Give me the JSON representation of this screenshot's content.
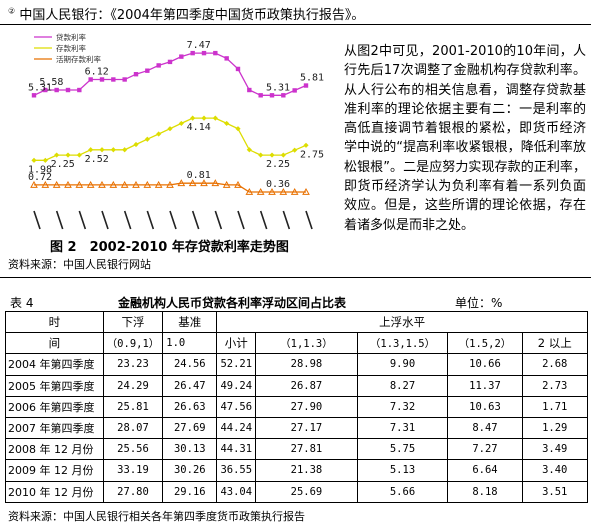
{
  "footnote": {
    "marker": "②",
    "text": "中国人民银行：《2004年第四季度中国货币政策执行报告》。"
  },
  "paragraph": "从图2中可见，2001-2010的10年间，人行先后17次调整了金融机构存贷款利率。从人行公布的相关信息看，调整存贷款基准利率的理论依据主要有二：一是利率的高低直接调节着银根的紧松，即货币经济学中说的“提高利率收紧银根，降低利率放松银根”。二是应努力实现存款的正利率，即货币经济学认为负利率有着一系列负面效应。但是，这些所谓的理论依据，存在着诸多似是而非之处。",
  "figure": {
    "caption": "图 2　2002-2010 年存贷款利率走势图",
    "source": "资料来源：中国人民银行网站"
  },
  "chart_data": {
    "type": "line",
    "legend": [
      "贷款利率",
      "存款利率",
      "活期存款利率"
    ],
    "series": [
      {
        "name": "贷款利率",
        "color": "#cc33cc",
        "marker": "square",
        "values": [
          5.31,
          5.58,
          5.58,
          5.58,
          5.58,
          6.12,
          6.12,
          6.12,
          6.12,
          6.39,
          6.57,
          6.84,
          7.02,
          7.29,
          7.47,
          7.47,
          7.47,
          7.2,
          6.66,
          5.58,
          5.31,
          5.31,
          5.31,
          5.56,
          5.81
        ]
      },
      {
        "name": "存款利率",
        "color": "#dddd00",
        "marker": "diamond",
        "values": [
          1.98,
          1.98,
          2.25,
          2.25,
          2.25,
          2.52,
          2.52,
          2.52,
          2.52,
          2.79,
          3.06,
          3.33,
          3.6,
          3.87,
          4.14,
          4.14,
          4.14,
          3.87,
          3.6,
          2.52,
          2.25,
          2.25,
          2.25,
          2.5,
          2.75
        ]
      },
      {
        "name": "活期存款利率",
        "color": "#e87000",
        "marker": "triangle",
        "values": [
          0.72,
          0.72,
          0.72,
          0.72,
          0.72,
          0.72,
          0.72,
          0.72,
          0.72,
          0.72,
          0.72,
          0.72,
          0.72,
          0.81,
          0.81,
          0.81,
          0.81,
          0.72,
          0.72,
          0.36,
          0.36,
          0.36,
          0.36,
          0.36,
          0.36
        ]
      }
    ],
    "annotations": [
      {
        "series": 0,
        "index": 0,
        "text": "5.31"
      },
      {
        "series": 0,
        "index": 1,
        "text": "5.58"
      },
      {
        "series": 0,
        "index": 5,
        "text": "6.12"
      },
      {
        "series": 0,
        "index": 14,
        "text": "7.47"
      },
      {
        "series": 0,
        "index": 21,
        "text": "5.31"
      },
      {
        "series": 0,
        "index": 24,
        "text": "5.81"
      },
      {
        "series": 1,
        "index": 0,
        "text": "1.98"
      },
      {
        "series": 1,
        "index": 2,
        "text": "2.25"
      },
      {
        "series": 1,
        "index": 5,
        "text": "2.52"
      },
      {
        "series": 1,
        "index": 14,
        "text": "4.14"
      },
      {
        "series": 1,
        "index": 21,
        "text": "2.25"
      },
      {
        "series": 1,
        "index": 24,
        "text": "2.75"
      },
      {
        "series": 2,
        "index": 0,
        "text": "0.72"
      },
      {
        "series": 2,
        "index": 14,
        "text": "0.81"
      },
      {
        "series": 2,
        "index": 21,
        "text": "0.36"
      }
    ],
    "ylim": [
      0,
      8.5
    ],
    "grid": false,
    "legend_placement": "top-left"
  },
  "table": {
    "label": "表 4",
    "title": "金融机构人民币贷款各利率浮动区间占比表",
    "unit": "单位：%",
    "header": {
      "time_top": "时",
      "time_bottom": "间",
      "down": "下浮",
      "base": "基准",
      "up": "上浮水平",
      "down_range": "（0.9,1）",
      "base_value": "1.0",
      "subtotal": "小计",
      "r1": "（1,1.3）",
      "r2": "（1.3,1.5）",
      "r3": "（1.5,2）",
      "r4": "2 以上"
    },
    "rows": [
      {
        "period": "2004 年第四季度",
        "down": "23.23",
        "base": "24.56",
        "subtotal": "52.21",
        "r1": "28.98",
        "r2": "9.90",
        "r3": "10.66",
        "r4": "2.68"
      },
      {
        "period": "2005 年第四季度",
        "down": "24.29",
        "base": "26.47",
        "subtotal": "49.24",
        "r1": "26.87",
        "r2": "8.27",
        "r3": "11.37",
        "r4": "2.73"
      },
      {
        "period": "2006 年第四季度",
        "down": "25.81",
        "base": "26.63",
        "subtotal": "47.56",
        "r1": "27.90",
        "r2": "7.32",
        "r3": "10.63",
        "r4": "1.71"
      },
      {
        "period": "2007 年第四季度",
        "down": "28.07",
        "base": "27.69",
        "subtotal": "44.24",
        "r1": "27.17",
        "r2": "7.31",
        "r3": "8.47",
        "r4": "1.29"
      },
      {
        "period": "2008 年 12 月份",
        "down": "25.56",
        "base": "30.13",
        "subtotal": "44.31",
        "r1": "27.81",
        "r2": "5.75",
        "r3": "7.27",
        "r4": "3.49"
      },
      {
        "period": "2009 年 12 月份",
        "down": "33.19",
        "base": "30.26",
        "subtotal": "36.55",
        "r1": "21.38",
        "r2": "5.13",
        "r3": "6.64",
        "r4": "3.40"
      },
      {
        "period": "2010 年 12 月份",
        "down": "27.80",
        "base": "29.16",
        "subtotal": "43.04",
        "r1": "25.69",
        "r2": "5.66",
        "r3": "8.18",
        "r4": "3.51"
      }
    ]
  },
  "table_source": "资料来源：中国人民银行相关各年第四季度货币政策执行报告"
}
